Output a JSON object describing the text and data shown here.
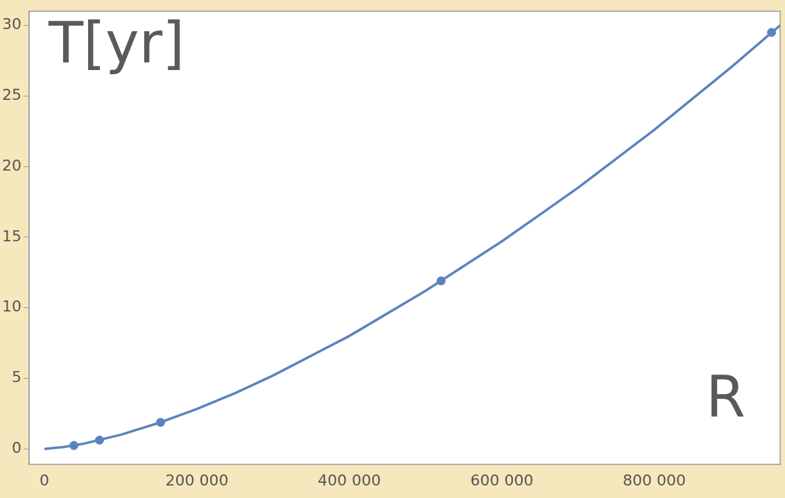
{
  "chart_data": {
    "type": "line",
    "xlabel": "R",
    "ylabel": "T[yr]",
    "xlim": [
      -20000,
      965000
    ],
    "ylim": [
      -1.1,
      31
    ],
    "xticks": [
      0,
      {
        "value": 200000,
        "label": "200 000"
      },
      {
        "value": 400000,
        "label": "400 000"
      },
      {
        "value": 600000,
        "label": "600 000"
      },
      {
        "value": 800000,
        "label": "800 000"
      }
    ],
    "yticks": [
      0,
      5,
      10,
      15,
      20,
      25,
      30
    ],
    "grid": false,
    "legend": false,
    "series": [
      {
        "type": "line",
        "marker": "none",
        "color": "#5b82c0",
        "x": [
          0,
          25000,
          50000,
          100000,
          150000,
          200000,
          250000,
          300000,
          400000,
          500000,
          600000,
          700000,
          800000,
          900000,
          965000
        ],
        "values": [
          0,
          0.13,
          0.35,
          1,
          1.84,
          2.83,
          3.95,
          5.2,
          8,
          11.2,
          14.7,
          18.5,
          22.6,
          27,
          30
        ]
      },
      {
        "type": "scatter",
        "marker": "circle",
        "color": "#5b82c0",
        "x": [
          38700,
          72300,
          152400,
          520300,
          953700
        ],
        "values": [
          0.24,
          0.62,
          1.88,
          11.9,
          29.5
        ]
      }
    ]
  }
}
